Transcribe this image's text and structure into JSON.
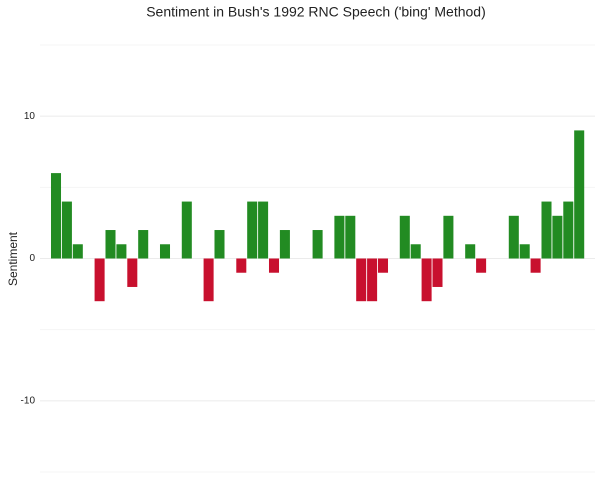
{
  "chart_data": {
    "type": "bar",
    "title": "Sentiment in Bush's 1992 RNC Speech ('bing' Method)",
    "ylabel": "Sentiment",
    "values": [
      6,
      4,
      1,
      0,
      -3,
      2,
      1,
      -2,
      2,
      0,
      1,
      0,
      4,
      0,
      -3,
      2,
      0,
      -1,
      4,
      4,
      -1,
      2,
      0,
      0,
      2,
      0,
      3,
      3,
      -3,
      -3,
      -1,
      0,
      3,
      1,
      -3,
      -2,
      3,
      0,
      1,
      -1,
      0,
      0,
      3,
      1,
      -1,
      4,
      3,
      4,
      9
    ],
    "colors": {
      "positive": "#228b22",
      "negative": "#c8102e"
    },
    "ylim": [
      -15,
      15
    ],
    "yticks": [
      -10,
      0,
      10
    ],
    "yminorticks": [
      -15,
      -5,
      5,
      15
    ],
    "grid": true
  }
}
